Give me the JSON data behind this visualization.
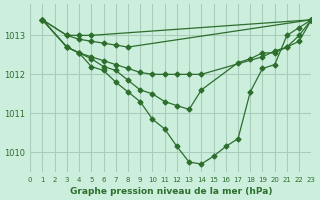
{
  "bg_color": "#cceedd",
  "grid_color": "#aaccbb",
  "line_color": "#2d6e2d",
  "title": "Graphe pression niveau de la mer (hPa)",
  "xlim": [
    0,
    23
  ],
  "ylim": [
    1009.5,
    1013.8
  ],
  "yticks": [
    1010,
    1011,
    1012,
    1013
  ],
  "xticks": [
    0,
    1,
    2,
    3,
    4,
    5,
    6,
    7,
    8,
    9,
    10,
    11,
    12,
    13,
    14,
    15,
    16,
    17,
    18,
    19,
    20,
    21,
    22,
    23
  ],
  "series": [
    {
      "x": [
        1,
        3,
        4,
        5,
        6,
        7,
        8,
        9,
        10,
        11,
        12,
        13,
        14,
        15,
        16,
        17,
        18,
        19,
        20,
        21,
        22,
        23
      ],
      "y": [
        1013.4,
        1012.7,
        1012.55,
        1012.2,
        1012.1,
        1011.8,
        1011.55,
        1011.3,
        1010.85,
        1010.6,
        1010.15,
        1009.75,
        1009.7,
        1009.9,
        1010.15,
        1010.35,
        1011.55,
        1012.15,
        1012.25,
        1013.0,
        1013.2,
        1013.4
      ]
    },
    {
      "x": [
        1,
        3,
        4,
        5,
        6,
        7,
        8,
        9,
        10,
        11,
        12,
        13,
        14,
        17,
        18,
        19,
        20,
        21,
        22,
        23
      ],
      "y": [
        1013.4,
        1012.7,
        1012.55,
        1012.4,
        1012.2,
        1012.1,
        1011.85,
        1011.6,
        1011.5,
        1011.3,
        1011.2,
        1011.1,
        1011.6,
        1012.3,
        1012.4,
        1012.55,
        1012.55,
        1012.7,
        1013.0,
        1013.4
      ]
    },
    {
      "x": [
        1,
        3,
        4,
        5,
        6,
        7,
        8,
        9,
        10,
        11,
        12,
        13,
        14,
        19,
        20,
        21,
        22,
        23
      ],
      "y": [
        1013.4,
        1012.7,
        1012.55,
        1012.45,
        1012.35,
        1012.25,
        1012.15,
        1012.05,
        1012.0,
        1012.0,
        1012.0,
        1012.0,
        1012.0,
        1012.45,
        1012.6,
        1012.7,
        1012.85,
        1013.4
      ]
    },
    {
      "x": [
        1,
        3,
        4,
        5,
        6,
        7,
        8,
        23
      ],
      "y": [
        1013.4,
        1013.0,
        1012.9,
        1012.85,
        1012.8,
        1012.75,
        1012.7,
        1013.4
      ]
    },
    {
      "x": [
        1,
        3,
        4,
        5,
        23
      ],
      "y": [
        1013.4,
        1013.0,
        1013.0,
        1013.0,
        1013.4
      ]
    }
  ]
}
